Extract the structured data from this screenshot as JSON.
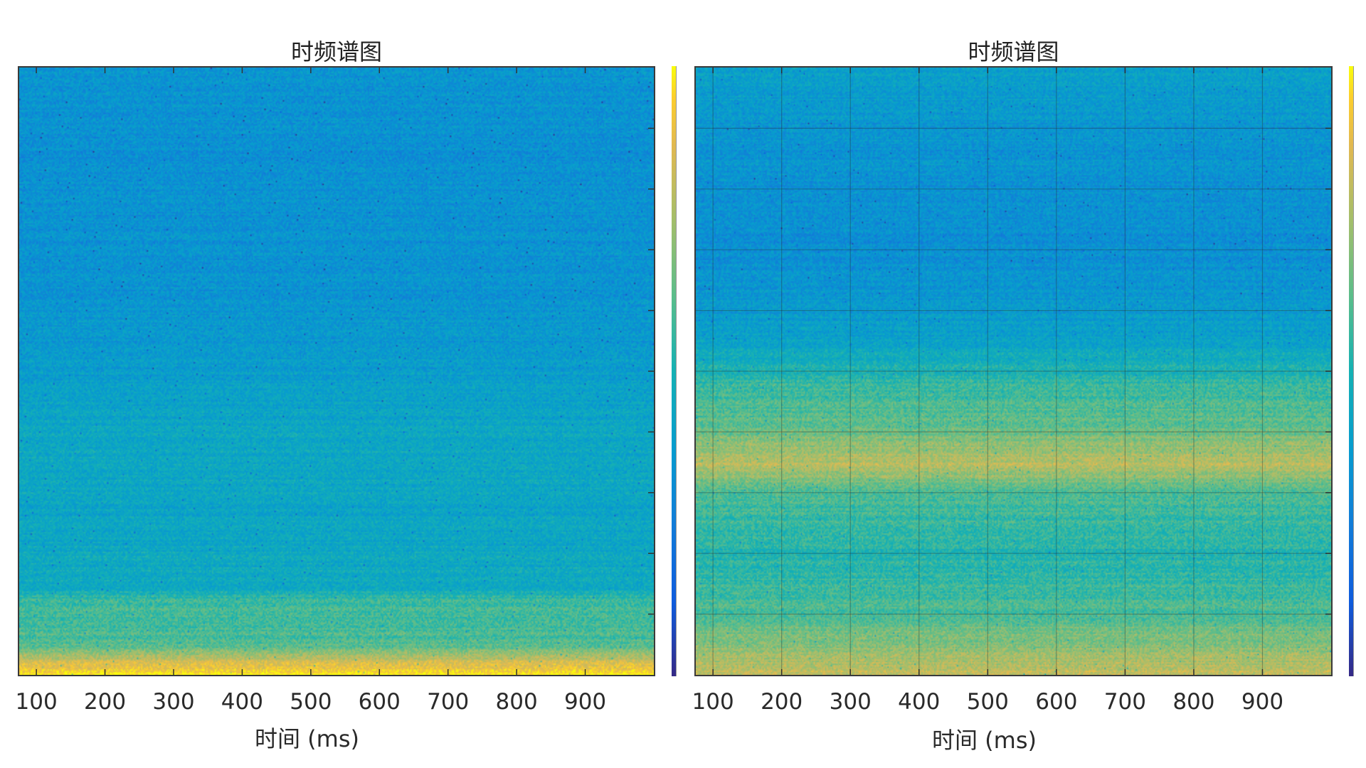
{
  "chart_data": [
    {
      "type": "heatmap",
      "title": "时频谱图",
      "xlabel": "时间 (ms)",
      "ylabel": "",
      "x_ticks": [
        100,
        200,
        300,
        400,
        500,
        600,
        700,
        800,
        900
      ],
      "xlim": [
        75,
        1000
      ],
      "grid": false,
      "colormap": "parula",
      "colorbar": true,
      "intensity_profile": [
        {
          "y_frac": 0.0,
          "level": 0.34
        },
        {
          "y_frac": 0.15,
          "level": 0.33
        },
        {
          "y_frac": 0.35,
          "level": 0.34
        },
        {
          "y_frac": 0.5,
          "level": 0.38
        },
        {
          "y_frac": 0.62,
          "level": 0.44
        },
        {
          "y_frac": 0.75,
          "level": 0.42
        },
        {
          "y_frac": 0.86,
          "level": 0.46
        },
        {
          "y_frac": 0.88,
          "level": 0.58
        },
        {
          "y_frac": 0.95,
          "level": 0.6
        },
        {
          "y_frac": 0.975,
          "level": 0.8
        },
        {
          "y_frac": 1.0,
          "level": 0.98
        }
      ]
    },
    {
      "type": "heatmap",
      "title": "时频谱图",
      "xlabel": "时间 (ms)",
      "ylabel": "",
      "x_ticks": [
        100,
        200,
        300,
        400,
        500,
        600,
        700,
        800,
        900
      ],
      "xlim": [
        75,
        1000
      ],
      "grid": true,
      "colormap": "parula",
      "colorbar": true,
      "intensity_profile": [
        {
          "y_frac": 0.0,
          "level": 0.4
        },
        {
          "y_frac": 0.1,
          "level": 0.35
        },
        {
          "y_frac": 0.3,
          "level": 0.32
        },
        {
          "y_frac": 0.45,
          "level": 0.4
        },
        {
          "y_frac": 0.52,
          "level": 0.55
        },
        {
          "y_frac": 0.6,
          "level": 0.66
        },
        {
          "y_frac": 0.655,
          "level": 0.8
        },
        {
          "y_frac": 0.7,
          "level": 0.6
        },
        {
          "y_frac": 0.8,
          "level": 0.52
        },
        {
          "y_frac": 0.9,
          "level": 0.6
        },
        {
          "y_frac": 0.96,
          "level": 0.72
        },
        {
          "y_frac": 1.0,
          "level": 0.82
        }
      ]
    }
  ]
}
